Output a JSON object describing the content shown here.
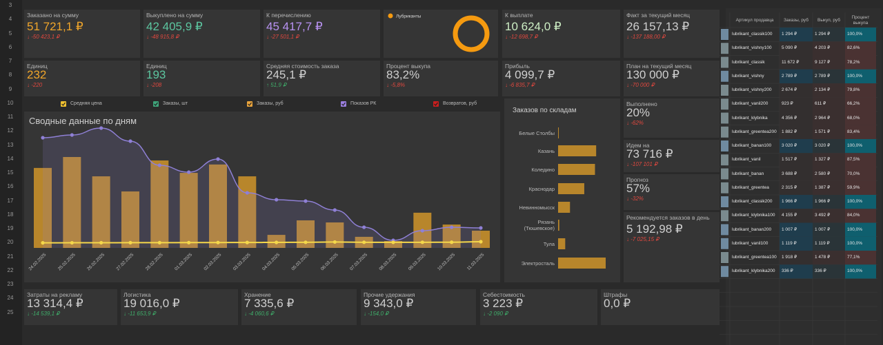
{
  "row_numbers": [
    3,
    4,
    5,
    6,
    7,
    8,
    9,
    10,
    11,
    12,
    13,
    14,
    15,
    16,
    17,
    18,
    19,
    20,
    21,
    22,
    23,
    24,
    25
  ],
  "cards": [
    {
      "label": "Заказано на сумму",
      "value": "51 721,1 ₽",
      "delta": "↓ -50 423,1 ₽",
      "value_color": "#f0a52a",
      "delta_color": "#e0483f"
    },
    {
      "label": "Выкуплено на сумму",
      "value": "42 405,9 ₽",
      "delta": "↓ -48 915,8 ₽",
      "value_color": "#5cc6a0",
      "delta_color": "#e0483f"
    },
    {
      "label": "К перечислению",
      "value": "45 417,7 ₽",
      "delta": "↓ -27 501,1 ₽",
      "value_color": "#b892f2",
      "delta_color": "#e0483f"
    },
    {
      "label": "К выплате",
      "value": "10 624,0 ₽",
      "delta": "↓ -12 698,7 ₽",
      "value_color": "#cdeec4",
      "delta_color": "#e0483f"
    },
    {
      "label": "Факт за текущий месяц",
      "value": "26 157,13 ₽",
      "delta": "↓ -137 188,00 ₽",
      "value_color": "#cfcfcf",
      "delta_color": "#e0483f"
    },
    {
      "label": "Единиц",
      "value": "232",
      "delta": "↓ -220",
      "value_color": "#f0a52a",
      "delta_color": "#e0483f"
    },
    {
      "label": "Единиц",
      "value": "193",
      "delta": "↓ -208",
      "value_color": "#5cc6a0",
      "delta_color": "#e0483f"
    },
    {
      "label": "Средняя стоимость заказа",
      "value": "245,1 ₽",
      "delta": "↑ 51,9 ₽",
      "value_color": "#cfcfcf",
      "delta_color": "#3fae6a"
    },
    {
      "label": "Процент выкупа",
      "value": "83,2%",
      "delta": "↓ -5,8%",
      "value_color": "#cfcfcf",
      "delta_color": "#e0483f"
    },
    {
      "label": "Прибыль",
      "value": "4 099,7 ₽",
      "delta": "↓ -6 835,7 ₽",
      "value_color": "#cfcfcf",
      "delta_color": "#e0483f"
    },
    {
      "label": "План на текущий месяц",
      "value": "130 000 ₽",
      "delta": "↓ -70 000 ₽",
      "value_color": "#cfcfcf",
      "delta_color": "#e0483f"
    },
    {
      "label": "Выполнено",
      "value": "20%",
      "delta": "↓ -62%",
      "value_color": "#cfcfcf",
      "delta_color": "#e0483f"
    },
    {
      "label": "Идем на",
      "value": "73 716 ₽",
      "delta": "↓ -107 101 ₽",
      "value_color": "#cfcfcf",
      "delta_color": "#e0483f"
    },
    {
      "label": "Прогноз",
      "value": "57%",
      "delta": "↓ -32%",
      "value_color": "#cfcfcf",
      "delta_color": "#e0483f"
    },
    {
      "label": "Рекомендуется заказов в день",
      "value": "5 192,98 ₽",
      "delta": "↓ -7 025,15 ₽",
      "value_color": "#cfcfcf",
      "delta_color": "#e0483f"
    },
    {
      "label": "Затраты на рекламу",
      "value": "13 314,4 ₽",
      "delta": "↓ -14 539,1 ₽",
      "value_color": "#cfcfcf",
      "delta_color": "#3fae6a"
    },
    {
      "label": "Логистика",
      "value": "19 016,0 ₽",
      "delta": "↓ -11 653,9 ₽",
      "value_color": "#cfcfcf",
      "delta_color": "#3fae6a"
    },
    {
      "label": "Хранение",
      "value": "7 335,6 ₽",
      "delta": "↓ -4 060,6 ₽",
      "value_color": "#cfcfcf",
      "delta_color": "#3fae6a"
    },
    {
      "label": "Прочие удержания",
      "value": "9 343,0 ₽",
      "delta": "↓ -154,0 ₽",
      "value_color": "#cfcfcf",
      "delta_color": "#3fae6a"
    },
    {
      "label": "Себестоимость",
      "value": "3 223 ₽",
      "delta": "↓ -2 090 ₽",
      "value_color": "#cfcfcf",
      "delta_color": "#3fae6a"
    },
    {
      "label": "Штрафы",
      "value": "0,0 ₽",
      "value_color": "#cfcfcf"
    }
  ],
  "donut": {
    "type": "pie",
    "categories": [
      "Лубриканты"
    ],
    "values": [
      100
    ],
    "color": "#f59a10"
  },
  "daily_chart": {
    "type": "bar-line",
    "title": "Сводные данные по дням",
    "x": [
      "24.02.2025",
      "25.02.2025",
      "26.02.2025",
      "27.02.2025",
      "28.02.2025",
      "01.03.2025",
      "02.03.2025",
      "03.03.2025",
      "04.03.2025",
      "05.03.2025",
      "06.03.2025",
      "07.03.2025",
      "08.03.2025",
      "09.03.2025",
      "10.03.2025",
      "11.03.2025"
    ],
    "series": [
      {
        "name": "Средняя цена",
        "color": "#f2c230",
        "kind": "line",
        "line_color": "#f5d84a",
        "values": [
          225,
          228,
          230,
          232,
          232,
          235,
          238,
          240,
          245,
          250,
          262,
          250,
          248,
          250,
          252,
          275
        ]
      },
      {
        "name": "Заказы, шт",
        "color": "#3fa37a",
        "kind": "line",
        "values": [
          null,
          null,
          null,
          null,
          null,
          null,
          null,
          null,
          null,
          null,
          null,
          null,
          null,
          null,
          null,
          null
        ]
      },
      {
        "name": "Заказы, руб",
        "color": "#e8a33c",
        "kind": "bar",
        "line_color": "#b8862b",
        "values": [
          5340,
          6070,
          4780,
          3770,
          5840,
          5010,
          5570,
          4780,
          870,
          1840,
          1700,
          740,
          460,
          2350,
          1560,
          1150
        ]
      },
      {
        "name": "Показов РК",
        "color": "#9b7fe0",
        "kind": "line",
        "line_color": "#8f80d6",
        "values": [
          1600,
          1640,
          1740,
          1550,
          1200,
          1100,
          1290,
          800,
          700,
          680,
          550,
          300,
          110,
          250,
          300,
          290
        ]
      },
      {
        "name": "Возвратов, руб",
        "color": "#c81e1e",
        "kind": "line",
        "values": [
          null,
          null,
          null,
          null,
          null,
          null,
          null,
          null,
          null,
          null,
          null,
          null,
          null,
          null,
          null,
          null
        ]
      }
    ]
  },
  "warehouse_chart": {
    "type": "bar",
    "orientation": "horizontal",
    "title": "Заказов по складам",
    "categories": [
      "Белые Столбы",
      "Казань",
      "Коледино",
      "Краснодар",
      "Невинномысск",
      "Рязань (Тюшевское)",
      "Тула",
      "Электросталь"
    ],
    "values": [
      0.3,
      16,
      15.5,
      11,
      5,
      0.5,
      3,
      20
    ],
    "color": "#b8862b"
  },
  "table": {
    "headers": [
      "Артикул продавца",
      "Заказы, руб",
      "Выкуп, руб",
      "Процент выкупа"
    ],
    "rows": [
      [
        "lubrikant_classik100",
        "1 294 ₽",
        "1 294 ₽",
        "100,0%"
      ],
      [
        "lubrikant_vishny100",
        "5 090 ₽",
        "4 203 ₽",
        "82,6%"
      ],
      [
        "lubrikant_classik",
        "11 672 ₽",
        "9 127 ₽",
        "78,2%"
      ],
      [
        "lubrikant_vishny",
        "2 789 ₽",
        "2 789 ₽",
        "100,0%"
      ],
      [
        "lubrikant_vishny200",
        "2 674 ₽",
        "2 134 ₽",
        "79,8%"
      ],
      [
        "lubrikant_vanil200",
        "923 ₽",
        "611 ₽",
        "66,2%"
      ],
      [
        "lubrikant_klybnika",
        "4 356 ₽",
        "2 964 ₽",
        "68,0%"
      ],
      [
        "lubrikant_greentea200",
        "1 882 ₽",
        "1 571 ₽",
        "83,4%"
      ],
      [
        "lubrikant_banan100",
        "3 020 ₽",
        "3 020 ₽",
        "100,0%"
      ],
      [
        "lubrikant_vanil",
        "1 517 ₽",
        "1 327 ₽",
        "87,5%"
      ],
      [
        "lubrikant_banan",
        "3 688 ₽",
        "2 580 ₽",
        "70,0%"
      ],
      [
        "lubrikant_greentea",
        "2 315 ₽",
        "1 387 ₽",
        "59,9%"
      ],
      [
        "lubrikant_classik200",
        "1 966 ₽",
        "1 966 ₽",
        "100,0%"
      ],
      [
        "lubrikant_klybnika100",
        "4 155 ₽",
        "3 492 ₽",
        "84,0%"
      ],
      [
        "lubrikant_banan200",
        "1 007 ₽",
        "1 007 ₽",
        "100,0%"
      ],
      [
        "lubrikant_vanil100",
        "1 119 ₽",
        "1 119 ₽",
        "100,0%"
      ],
      [
        "lubrikant_greentea100",
        "1 918 ₽",
        "1 478 ₽",
        "77,1%"
      ],
      [
        "lubrikant_klybnika200",
        "336 ₽",
        "336 ₽",
        "100,0%"
      ]
    ],
    "tones": [
      "good",
      "bad",
      "bad",
      "good",
      "bad",
      "bad",
      "bad",
      "bad",
      "good",
      "bad",
      "bad",
      "bad",
      "good",
      "bad",
      "good",
      "good",
      "bad",
      "good"
    ]
  }
}
